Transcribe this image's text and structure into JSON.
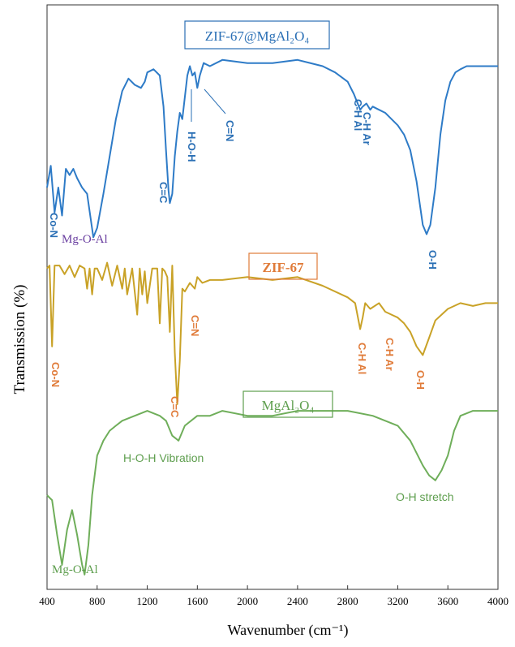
{
  "chart_data": {
    "type": "line",
    "xlabel": "Wavenumber (cm⁻¹)",
    "ylabel": "Transmission (%)",
    "xlim": [
      400,
      4000
    ],
    "x_ticks": [
      "400",
      "800",
      "1200",
      "1600",
      "2000",
      "2400",
      "2800",
      "3200",
      "3600",
      "4000"
    ],
    "y_ticks_shown": false,
    "grid": false,
    "colors": {
      "zif_mgal": "#2E7BC7",
      "zif67": "#C9A227",
      "mgal": "#6FAE5A",
      "label_blue": "#2A6FB5",
      "label_orange": "#E07B39",
      "label_purple": "#6A3FA0",
      "label_green": "#5E9E4E"
    },
    "series": [
      {
        "name": "ZIF-67@MgAl₂O₄",
        "key": "zif_mgal",
        "x": [
          400,
          430,
          460,
          490,
          520,
          550,
          580,
          610,
          640,
          680,
          720,
          770,
          800,
          850,
          900,
          950,
          1000,
          1050,
          1100,
          1150,
          1180,
          1200,
          1250,
          1300,
          1330,
          1350,
          1370,
          1380,
          1400,
          1420,
          1440,
          1460,
          1480,
          1500,
          1520,
          1540,
          1560,
          1580,
          1600,
          1620,
          1650,
          1700,
          1800,
          2000,
          2200,
          2400,
          2600,
          2700,
          2800,
          2850,
          2900,
          2920,
          2950,
          2980,
          3000,
          3050,
          3100,
          3150,
          3200,
          3250,
          3300,
          3350,
          3400,
          3430,
          3460,
          3500,
          3540,
          3580,
          3620,
          3660,
          3700,
          3750,
          3800,
          3900,
          4000
        ],
        "y": [
          18,
          25,
          10,
          18,
          9,
          24,
          22,
          24,
          21,
          18,
          16,
          2,
          5,
          16,
          28,
          40,
          49,
          53,
          51,
          50,
          52,
          55,
          56,
          54,
          44,
          30,
          17,
          13,
          16,
          28,
          36,
          42,
          40,
          47,
          54,
          57,
          54,
          55,
          50,
          54,
          58,
          57,
          59,
          58,
          58,
          59,
          57,
          55,
          52,
          48,
          43,
          44,
          45,
          43,
          44,
          43,
          42,
          40,
          38,
          35,
          30,
          20,
          6,
          3,
          6,
          18,
          35,
          46,
          52,
          55,
          56,
          57,
          57,
          57,
          57
        ]
      },
      {
        "name": "ZIF-67",
        "key": "zif67",
        "x": [
          400,
          420,
          440,
          460,
          500,
          540,
          580,
          620,
          660,
          700,
          720,
          740,
          760,
          780,
          800,
          840,
          880,
          920,
          960,
          1000,
          1020,
          1040,
          1080,
          1120,
          1140,
          1160,
          1180,
          1200,
          1240,
          1280,
          1300,
          1320,
          1340,
          1360,
          1380,
          1400,
          1420,
          1440,
          1460,
          1480,
          1500,
          1540,
          1580,
          1600,
          1640,
          1700,
          1800,
          2000,
          2200,
          2400,
          2600,
          2800,
          2860,
          2900,
          2920,
          2940,
          2980,
          3050,
          3100,
          3150,
          3200,
          3250,
          3300,
          3350,
          3400,
          3450,
          3500,
          3550,
          3600,
          3700,
          3800,
          3900,
          4000
        ],
        "y": [
          67,
          68,
          40,
          68,
          68,
          65,
          68,
          64,
          68,
          67,
          60,
          67,
          58,
          67,
          67,
          63,
          69,
          61,
          68,
          60,
          67,
          58,
          67,
          51,
          67,
          58,
          66,
          55,
          67,
          67,
          48,
          67,
          66,
          64,
          45,
          68,
          38,
          20,
          35,
          60,
          59,
          62,
          60,
          64,
          62,
          63,
          63,
          64,
          63,
          64,
          61,
          57,
          55,
          46,
          50,
          55,
          53,
          55,
          52,
          51,
          50,
          48,
          45,
          40,
          37,
          43,
          49,
          51,
          53,
          55,
          54,
          55,
          55
        ]
      },
      {
        "name": "MgAl₂O₄",
        "key": "mgal",
        "x": [
          400,
          440,
          480,
          520,
          560,
          600,
          640,
          680,
          700,
          730,
          760,
          800,
          850,
          900,
          950,
          1000,
          1100,
          1200,
          1300,
          1350,
          1400,
          1450,
          1500,
          1600,
          1700,
          1800,
          2000,
          2200,
          2400,
          2600,
          2800,
          3000,
          3100,
          3200,
          3300,
          3400,
          3450,
          3500,
          3550,
          3600,
          3650,
          3700,
          3800,
          3900,
          4000
        ],
        "y": [
          20,
          19,
          12,
          6,
          13,
          17,
          12,
          6,
          4,
          10,
          20,
          28,
          31,
          33,
          34,
          35,
          36,
          37,
          36,
          35,
          32,
          31,
          34,
          36,
          36,
          37,
          36,
          36,
          37,
          37,
          37,
          36,
          35,
          34,
          31,
          26,
          24,
          23,
          25,
          28,
          33,
          36,
          37,
          37,
          37
        ]
      }
    ],
    "labels": {
      "zif_mgal_title": "ZIF-67@MgAl₂O₄",
      "zif67_title": "ZIF-67",
      "mgal_title": "MgAl₂O₄",
      "co_n_1": "Co-N",
      "mg_o_al_1": "Mg-O-Al",
      "c_c_1": "C=C",
      "h_o_h": "H-O-H",
      "c_n_1": "C=N",
      "c_h_al_1": "C-H Al",
      "c_h_ar_1": "C-H Ar",
      "o_h_1": "O-H",
      "co_n_2": "Co-N",
      "c_n_2": "C=N",
      "c_c_2": "C=C",
      "c_h_al_2": "C-H Al",
      "c_h_ar_2": "C-H Ar",
      "o_h_2": "O-H",
      "hoh_vib": "H-O-H Vibration",
      "oh_stretch": "O-H stretch",
      "mg_o_al_2": "Mg-O-Al"
    }
  }
}
